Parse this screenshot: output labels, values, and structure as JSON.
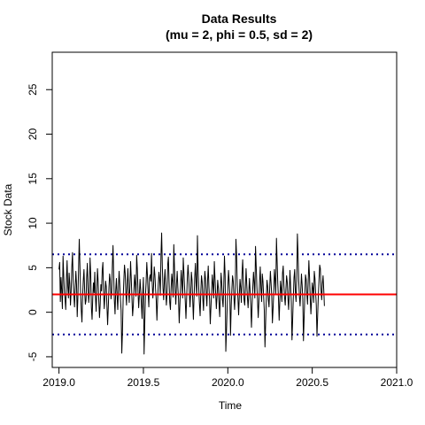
{
  "chart_data": {
    "type": "line",
    "title": "Data Results",
    "subtitle": "(mu = 2,  phi = 0.5,  sd = 2)",
    "xlabel": "Time",
    "ylabel": "Stock Data",
    "xlim": [
      2018.96,
      2021.0
    ],
    "ylim": [
      -6.2,
      29.2
    ],
    "x_ticks": [
      2019.0,
      2019.5,
      2020.0,
      2020.5,
      2021.0
    ],
    "x_tick_labels": [
      "2019.0",
      "2019.5",
      "2020.0",
      "2020.5",
      "2021.0"
    ],
    "y_ticks": [
      -5,
      0,
      5,
      10,
      15,
      20,
      25
    ],
    "y_tick_labels": [
      "-5",
      "0",
      "5",
      "10",
      "15",
      "20",
      "25"
    ],
    "grid": false,
    "series": [
      {
        "color": "#000000",
        "line_style": "solid",
        "x_start": 2019.0,
        "x_step": 0.004,
        "values": [
          4.8,
          5.6,
          1.2,
          3.9,
          2.5,
          0.4,
          6.3,
          4.1,
          2.2,
          1.5,
          0.3,
          3.7,
          5.8,
          2.9,
          1.6,
          4.4,
          3.2,
          0.8,
          2.4,
          5.1,
          6.7,
          3.5,
          1.9,
          0.6,
          2.8,
          4.6,
          3.1,
          -0.5,
          1.7,
          4.9,
          8.2,
          5.3,
          2.1,
          0.2,
          -1.1,
          1.8,
          3.6,
          4.8,
          2.4,
          0.9,
          1.3,
          3.9,
          5.5,
          2.7,
          1.1,
          2.3,
          6.1,
          4.2,
          0.5,
          -0.8,
          1.6,
          3.3,
          2.2,
          4.5,
          1.7,
          0.1,
          2.6,
          4.9,
          3.4,
          1.2,
          -0.6,
          0.9,
          3.1,
          2.4,
          4.7,
          5.6,
          2.3,
          0.4,
          1.8,
          3.5,
          2.9,
          0.7,
          -1.4,
          0.6,
          2.8,
          4.3,
          3.6,
          1.5,
          2.2,
          5.2,
          7.5,
          4.1,
          1.3,
          -0.2,
          2.4,
          3.8,
          1.9,
          0.3,
          2.7,
          4.6,
          3.1,
          1.4,
          0.2,
          -4.6,
          -2.1,
          1.5,
          3.6,
          5.3,
          4.4,
          2.1,
          0.8,
          3.2,
          4.9,
          2.6,
          1.1,
          2.9,
          5.7,
          3.8,
          1.6,
          -0.4,
          0.7,
          2.5,
          4.2,
          3.1,
          1.8,
          6.4,
          4.9,
          2.3,
          0.5,
          1.9,
          3.7,
          2.5,
          0.9,
          -0.7,
          2.1,
          3.9,
          -4.7,
          -1.3,
          1.8,
          3.4,
          5.6,
          4.1,
          2.2,
          0.6,
          3.8,
          4.2,
          3.5,
          6.6,
          3.3,
          1.6,
          2.9,
          5.1,
          4.2,
          2.6,
          1.3,
          -0.9,
          1.4,
          3.1,
          4.5,
          3.7,
          1.9,
          6.3,
          8.9,
          5.2,
          2.7,
          1.4,
          3.6,
          4.8,
          2.5,
          0.8,
          2.1,
          5.4,
          6.2,
          3.4,
          1.1,
          0.3,
          2.6,
          4.3,
          3.5,
          1.7,
          7.6,
          5.1,
          2.4,
          0.9,
          3.2,
          4.6,
          2.8,
          1.5,
          -1.2,
          0.8,
          2.9,
          4.7,
          3.3,
          1.6,
          6.1,
          4.4,
          2.7,
          1.2,
          -0.7,
          1.5,
          3.8,
          5.3,
          4.1,
          2.3,
          0.6,
          2.2,
          4.5,
          3.6,
          1.4,
          -0.8,
          1.7,
          3.9,
          5.5,
          3.2,
          1.8,
          8.6,
          4.8,
          2.6,
          0.9,
          -0.4,
          2.3,
          4.1,
          3.4,
          1.5,
          0.2,
          2.8,
          4.6,
          3.7,
          1.9,
          0.7,
          3.5,
          5.2,
          2.9,
          1.3,
          -1.3,
          0.6,
          2.4,
          4.2,
          3.1,
          1.6,
          5.7,
          3.8,
          2.1,
          0.4,
          1.8,
          3.6,
          2.7,
          0.9,
          -0.5,
          2.3,
          4.4,
          3.2,
          1.4,
          0.6,
          3.1,
          6.3,
          4.1,
          -4.4,
          -2.1,
          0.5,
          2.8,
          4.7,
          3.4,
          1.9,
          -2.6,
          0.7,
          2.6,
          4.1,
          3.5,
          1.7,
          0.3,
          2.2,
          8.2,
          6.3,
          3.1,
          1.5,
          -0.3,
          1.9,
          3.7,
          2.8,
          1.1,
          4.3,
          5.9,
          3.6,
          1.4,
          0.8,
          2.6,
          4.9,
          3.2,
          1.7,
          0.5,
          2.1,
          3.8,
          2.4,
          0.7,
          -1.7,
          0.9,
          2.8,
          4.5,
          3.3,
          1.6,
          7.4,
          5.2,
          2.9,
          1.3,
          -0.6,
          1.2,
          3.4,
          5.1,
          2.7,
          1.2,
          4.3,
          3.5,
          1.8,
          0.2,
          -3.9,
          -1.1,
          1.5,
          3.6,
          2.9,
          1.4,
          0.6,
          2.7,
          4.6,
          3.3,
          1.9,
          -1.2,
          0.4,
          2.3,
          4.8,
          3.6,
          2.1,
          8.3,
          5.7,
          3.2,
          1.5,
          -0.9,
          1.3,
          3.5,
          2.6,
          1.2,
          4.4,
          5.2,
          3.1,
          1.7,
          0.8,
          2.5,
          4.1,
          3.4,
          1.6,
          0.3,
          2.2,
          4.7,
          2.9,
          1.1,
          -3.1,
          -0.8,
          1.7,
          3.9,
          4.8,
          2.3,
          1.2,
          3.6,
          8.8,
          6.4,
          3.5,
          1.8,
          0.7,
          2.4,
          4.3,
          3.1,
          1.5,
          -3.2,
          -0.6,
          1.9,
          4.2,
          3.7,
          2.1,
          0.9,
          3.4,
          5.8,
          3.9,
          1.6,
          -0.2,
          1.4,
          3.3,
          2.7,
          1.1,
          4.6,
          3.8,
          2.2,
          0.8,
          -2.7,
          -0.4,
          1.8,
          3.6,
          5.3,
          4.9,
          2.5,
          1.4,
          3.2,
          4.1,
          2.6,
          0.7
        ]
      },
      {
        "color": "#ff0000",
        "line_style": "solid",
        "constant": 2.0
      },
      {
        "color": "#000099",
        "line_style": "dotted",
        "constant": 6.5
      },
      {
        "color": "#000099",
        "line_style": "dotted",
        "constant": -2.5
      }
    ]
  }
}
